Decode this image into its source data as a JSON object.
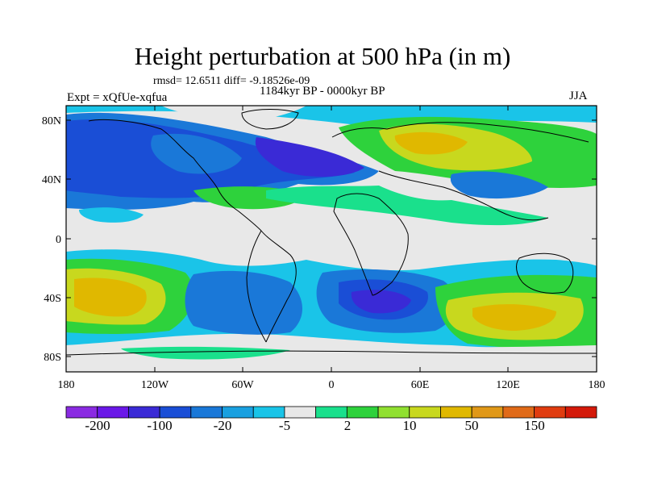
{
  "header": {
    "title": "Height perturbation at 500 hPa (in m)",
    "stats": "rmsd= 12.6511 diff= -9.18526e-09",
    "period": "1184kyr BP - 0000kyr BP",
    "experiment": "Expt = xQfUe-xqfua",
    "season": "JJA"
  },
  "axes": {
    "lat_ticks": [
      "80N",
      "40N",
      "0",
      "40S",
      "80S"
    ],
    "lon_ticks": [
      "180",
      "120W",
      "60W",
      "0",
      "60E",
      "120E",
      "180"
    ]
  },
  "colorbar": {
    "labels": [
      "-200",
      "-100",
      "-20",
      "-5",
      "2",
      "10",
      "50",
      "150"
    ],
    "colors": [
      "#8a2be2",
      "#6a18e8",
      "#3a2ad6",
      "#1a4ed6",
      "#1a78d8",
      "#1aa0e0",
      "#1ac4e8",
      "#e8e8e8",
      "#1ae08c",
      "#2ed23c",
      "#90e030",
      "#c8d81e",
      "#e0b800",
      "#e09818",
      "#e06a18",
      "#e03c10",
      "#d41a0a"
    ]
  },
  "map": {
    "projection": "cylindrical equidistant",
    "background_color": "#e8e8e8",
    "coastline_color": "#000000"
  }
}
